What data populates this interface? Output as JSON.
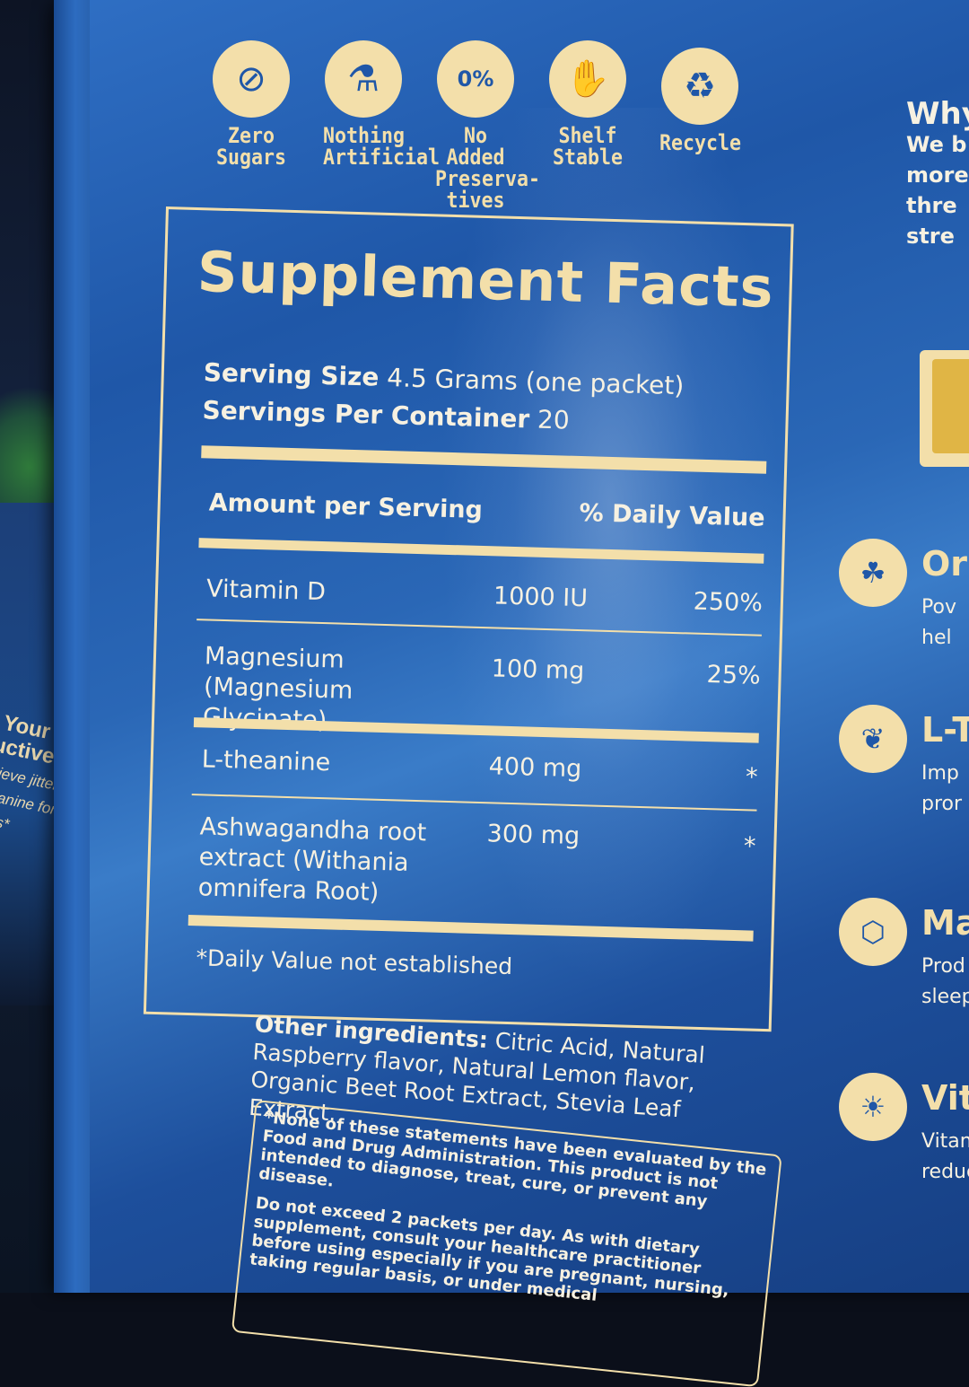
{
  "badges": [
    {
      "icon": "sugar-cube-crossed-icon",
      "label_lines": [
        "Zero",
        "Sugars"
      ]
    },
    {
      "icon": "flask-crossed-icon",
      "label_lines": [
        "Nothing",
        "Artificial"
      ]
    },
    {
      "icon": "zero-percent-drop-icon",
      "label_lines": [
        "No Added",
        "Preserva-",
        "tives"
      ]
    },
    {
      "icon": "can-hand-icon",
      "label_lines": [
        "Shelf",
        "Stable"
      ]
    },
    {
      "icon": "recycle-icon",
      "label_lines": [
        "Recycle"
      ]
    }
  ],
  "facts": {
    "title": "Supplement Facts",
    "serving_size_label": "Serving Size",
    "serving_size_value": "4.5 Grams (one packet)",
    "servings_label": "Servings Per Container",
    "servings_value": "20",
    "amount_header": "Amount per Serving",
    "dv_header": "% Daily Value",
    "rows": [
      {
        "name": "Vitamin D",
        "amount": "1000 IU",
        "dv": "250%"
      },
      {
        "name": "Magnesium (Magnesium Glycinate)",
        "amount": "100 mg",
        "dv": "25%"
      },
      {
        "name": "L-theanine",
        "amount": "400 mg",
        "dv": "*"
      },
      {
        "name": "Ashwagandha root extract (Withania omnifera Root)",
        "amount": "300 mg",
        "dv": "*"
      }
    ],
    "footnote": "*Daily Value not established"
  },
  "other": {
    "label": "Other ingredients:",
    "text": "Citric Acid, Natural Raspberry flavor, Natural Lemon flavor, Organic Beet Root Extract, Stevia Leaf Extract."
  },
  "disclaimer": {
    "fda": "*None of these statements have been evaluated by the Food and Drug Administration. This product is not intended to diagnose, treat, cure, or prevent any disease.",
    "usage": "Do not exceed 2 packets per day. As with dietary supplement, consult your healthcare practitioner before using especially if you are pregnant, nursing, taking regular basis, or under medical"
  },
  "left_pouch": {
    "heading_lines": [
      "l Your",
      "luctive Flow"
    ],
    "body_lines": [
      "relieve jitters",
      "theanine for",
      "ocus*"
    ]
  },
  "right_column": {
    "why_lines": [
      "Why",
      "We b",
      "more",
      "thre",
      "stre"
    ],
    "features": [
      {
        "icon": "mortar-herbs-icon",
        "title": "Or",
        "desc_lines": [
          "Pov",
          "hel"
        ]
      },
      {
        "icon": "leaf-icon",
        "title": "L-T",
        "desc_lines": [
          "Imp",
          "pror"
        ]
      },
      {
        "icon": "molecule-icon",
        "title": "Ma",
        "desc_lines": [
          "Prod",
          "sleep"
        ]
      },
      {
        "icon": "sun-drop-icon",
        "title": "Vita",
        "desc_lines": [
          "Vitam",
          "reduc"
        ]
      }
    ]
  },
  "colors": {
    "cream": "#f3dfaa",
    "pouch_blue": "#1f57a8",
    "text_light": "#f7f1e1"
  }
}
